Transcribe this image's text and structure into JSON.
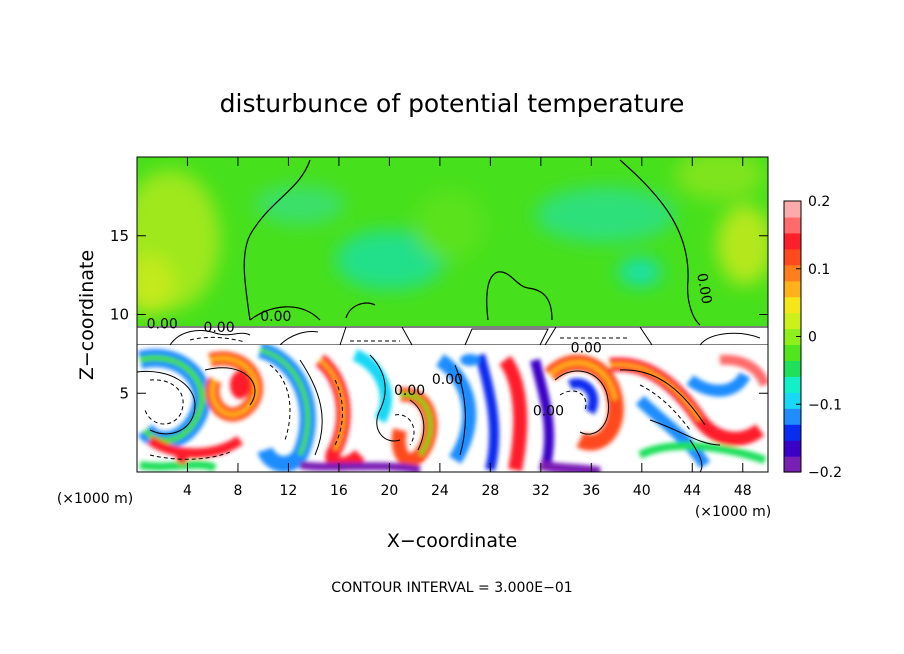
{
  "chart_data": {
    "type": "heatmap",
    "title": "disturbunce of potential temperature",
    "xlabel": "X−coordinate",
    "ylabel": "Z−coordinate",
    "x_unit_left": "(×1000 m)",
    "x_unit_right": "(×1000 m)",
    "xlim": [
      0,
      50
    ],
    "ylim": [
      0,
      20
    ],
    "x_ticks": [
      4,
      8,
      12,
      16,
      20,
      24,
      28,
      32,
      36,
      40,
      44,
      48
    ],
    "y_ticks": [
      5,
      10,
      15
    ],
    "colorbar": {
      "range": [
        -0.2,
        0.2
      ],
      "tick_values": [
        0.2,
        0.1,
        0,
        -0.1,
        -0.2
      ],
      "tick_labels": [
        "0.2",
        "0.1",
        "0",
        "−0.1",
        "−0.2"
      ],
      "colors": [
        "#7a1fb5",
        "#3a00c8",
        "#0a2cf0",
        "#1f8cff",
        "#19d8f5",
        "#12f0c8",
        "#1ee05a",
        "#4fe61e",
        "#8ef01b",
        "#ccf01a",
        "#f5e61a",
        "#ffb01a",
        "#ff7f1e",
        "#ff4a1e",
        "#ff1f2a",
        "#ff6a6a",
        "#ffaaaa"
      ]
    },
    "contour_labels": [
      {
        "text": "0.00",
        "x": 2.0,
        "y": 9.1
      },
      {
        "text": "0.00",
        "x": 6.5,
        "y": 8.9
      },
      {
        "text": "0.00",
        "x": 11.0,
        "y": 9.6
      },
      {
        "text": "0.00",
        "x": 21.6,
        "y": 4.9
      },
      {
        "text": "0.00",
        "x": 24.6,
        "y": 5.6
      },
      {
        "text": "0.00",
        "x": 32.6,
        "y": 3.6
      },
      {
        "text": "0.00",
        "x": 35.6,
        "y": 7.6
      },
      {
        "text": "0.00",
        "x": 44.6,
        "y": 11.6
      }
    ],
    "footer": "CONTOUR INTERVAL = 3.000E−01"
  }
}
